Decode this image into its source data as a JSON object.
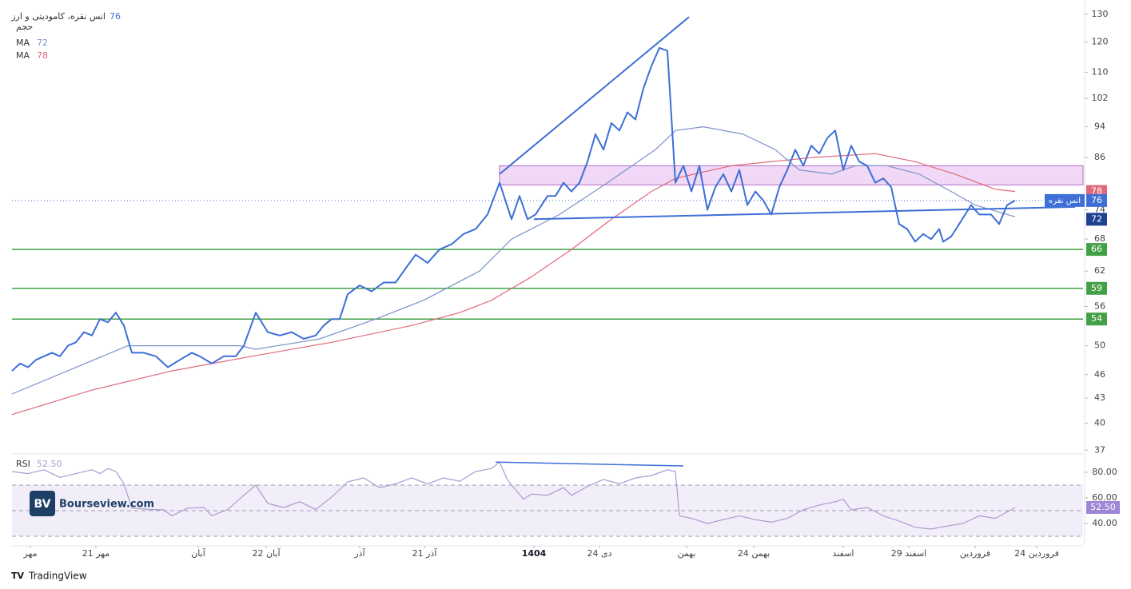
{
  "chart_data": {
    "type": "line",
    "log_scale": true,
    "volume_label": "حجم",
    "xlim": [
      0,
      134
    ],
    "ylim": [
      36.6,
      133
    ],
    "yticks": [
      130,
      120,
      110,
      102,
      94,
      86,
      74,
      68,
      62,
      56,
      50,
      46,
      43,
      40,
      37
    ],
    "xticks": [
      {
        "value": 2.3,
        "label": "مهر"
      },
      {
        "value": 10.5,
        "label": "21 مهر"
      },
      {
        "value": 23.3,
        "label": "آبان"
      },
      {
        "value": 31.8,
        "label": "22 آبان"
      },
      {
        "value": 43.5,
        "label": "آذر"
      },
      {
        "value": 51.6,
        "label": "21 آذر"
      },
      {
        "value": 65.3,
        "label": "1404"
      },
      {
        "value": 73.5,
        "label": "24 دی"
      },
      {
        "value": 84.4,
        "label": "بهمن"
      },
      {
        "value": 92.8,
        "label": "24 بهمن"
      },
      {
        "value": 104,
        "label": "اسفند"
      },
      {
        "value": 112.2,
        "label": "29 اسفند"
      },
      {
        "value": 120.5,
        "label": "فروردین"
      },
      {
        "value": 128.2,
        "label": "24 فروردین"
      }
    ],
    "series": [
      {
        "name": "انس نقره، کامودیتی و ارز",
        "tag": "انس نقره",
        "color": "#3d6fd6",
        "last_value": 76,
        "width": 2,
        "x": [
          0,
          1,
          2,
          3,
          4,
          5,
          6,
          7,
          8,
          9,
          10,
          11,
          12,
          13,
          14,
          15,
          16.5,
          18,
          19.5,
          21,
          22.5,
          23.5,
          25,
          26.5,
          28,
          29,
          30.5,
          32,
          33.5,
          35,
          36.5,
          38,
          39,
          40,
          41,
          42,
          43.5,
          45,
          46.5,
          48,
          49.5,
          50.5,
          52,
          53.5,
          55,
          56.5,
          58,
          59.5,
          61,
          62.5,
          63.5,
          64.5,
          65.5,
          67,
          68,
          69,
          70,
          71,
          72,
          73,
          74,
          75,
          76,
          77,
          78,
          79,
          80,
          81,
          82,
          83,
          84,
          85,
          86,
          87,
          88,
          89,
          90,
          91,
          92,
          93,
          94,
          95,
          96,
          97,
          98,
          99,
          100,
          101,
          102,
          103,
          104,
          105,
          106,
          107,
          108,
          109,
          110,
          111,
          112,
          113,
          114,
          115,
          116,
          116.5,
          117.5,
          118.5,
          120,
          121,
          122.5,
          123.5,
          124.5,
          125.5
        ],
        "values": [
          46.5,
          47.5,
          47,
          48,
          48.5,
          49,
          48.5,
          50,
          50.5,
          52,
          51.5,
          54,
          53.5,
          55,
          53,
          49,
          49,
          48.5,
          47,
          48,
          49,
          48.5,
          47.5,
          48.5,
          48.5,
          50,
          55,
          52,
          51.5,
          52,
          51,
          51.5,
          53,
          54,
          54,
          58,
          59.5,
          58.5,
          60,
          60,
          63,
          65,
          63.5,
          66,
          67,
          69,
          70,
          73,
          80,
          72,
          77,
          72,
          73,
          77,
          77,
          80,
          78,
          80,
          85,
          92,
          88,
          95,
          93,
          98,
          96,
          105,
          112,
          118,
          117,
          80,
          84,
          78,
          84,
          74,
          79,
          82,
          78,
          83,
          75,
          78,
          76,
          73,
          79,
          83,
          88,
          84,
          89,
          87,
          91,
          93,
          83,
          89,
          85,
          84,
          80,
          81,
          79,
          71,
          70,
          67.5,
          69,
          68,
          70,
          67.5,
          68.5,
          71,
          75,
          73,
          73,
          71,
          75,
          76
        ]
      },
      {
        "name": "MA",
        "color": "#7b93c9",
        "last_value": 72,
        "width": 1.2,
        "x": [
          0,
          14.5,
          28.5,
          30.5,
          38.5,
          45.5,
          51.5,
          58.5,
          62.5,
          68.5,
          74.5,
          80.5,
          83,
          86.5,
          91.5,
          95.5,
          98.5,
          102.5,
          105.5,
          109.5,
          113.5,
          117.5,
          120.5,
          125.5
        ],
        "values": [
          43.5,
          50,
          50,
          49.5,
          51,
          54,
          57,
          62,
          68,
          73,
          80,
          88,
          93,
          94,
          92,
          88,
          83,
          82,
          84,
          84,
          82,
          78,
          75,
          72.5
        ]
      },
      {
        "name": "MA",
        "color": "#e0687a",
        "last_value": 78,
        "width": 1.2,
        "x": [
          0,
          10,
          20,
          30,
          40,
          50,
          56,
          60,
          65,
          70,
          75,
          80,
          83,
          90,
          100,
          108,
          113,
          118,
          123,
          125.5
        ],
        "values": [
          41,
          44,
          46.5,
          48.5,
          50.5,
          53,
          55,
          57,
          61,
          66,
          72,
          78,
          81,
          84,
          86,
          87,
          85,
          82,
          78.5,
          78
        ]
      }
    ],
    "levels": [
      {
        "value": 66,
        "color": "#43a047"
      },
      {
        "value": 59,
        "color": "#43a047"
      },
      {
        "value": 54,
        "color": "#43a047"
      }
    ],
    "zone": {
      "x": [
        61,
        134
      ],
      "values": [
        79.5,
        84
      ],
      "color": "#e4b8ee"
    },
    "trendlines": [
      {
        "x": [
          61,
          84.7
        ],
        "values": [
          82,
          129
        ],
        "color": "#3d6fd6"
      },
      {
        "x": [
          65.3,
          133
        ],
        "values": [
          72,
          74.6
        ],
        "color": "#3d6fd6"
      }
    ],
    "rsi": {
      "name": "RSI",
      "last_value": 52.5,
      "last_value_label": "52.50",
      "color": "#a99bd0",
      "ylim": [
        22.5,
        93.1
      ],
      "yticks": [
        {
          "value": 80,
          "label": "80.00"
        },
        {
          "value": 60,
          "label": "60.00"
        },
        {
          "value": 40,
          "label": "40.00"
        }
      ],
      "band": [
        30,
        70
      ],
      "mid": 50,
      "x": [
        0,
        2,
        4,
        6,
        8,
        10,
        11,
        12,
        13,
        14,
        15,
        17,
        19,
        20,
        22,
        24,
        25,
        27,
        29,
        30.5,
        32,
        34,
        36,
        38,
        40,
        42,
        44,
        46,
        48,
        50,
        52,
        54,
        56,
        58,
        60,
        61,
        62,
        64,
        65,
        67,
        69,
        70,
        72,
        74,
        76,
        78,
        80,
        82,
        83,
        83.5,
        85,
        87,
        89,
        91,
        93,
        95,
        97,
        99,
        101,
        103,
        104,
        105,
        107,
        109,
        111,
        113,
        115,
        117,
        119,
        121,
        123,
        125,
        125.5
      ],
      "values": [
        80.6,
        79,
        82,
        76,
        79,
        82,
        79,
        83,
        80.6,
        71,
        52,
        51,
        50.6,
        46,
        52,
        52.5,
        46,
        51,
        62,
        70,
        55.6,
        52.5,
        57,
        51,
        60.6,
        72.5,
        75.6,
        68,
        71,
        75.6,
        71,
        75.6,
        73,
        80.6,
        83,
        88,
        74,
        59,
        63,
        62,
        68,
        62,
        69,
        74.4,
        71,
        75.6,
        77.5,
        82,
        80.6,
        46,
        44,
        40,
        43,
        46,
        43,
        41,
        44,
        50.6,
        54.4,
        57,
        59,
        50.6,
        52.5,
        46,
        41.9,
        37,
        35.6,
        38,
        40,
        46,
        44,
        50.6,
        52.5
      ],
      "trendline": {
        "x": [
          60.5,
          84
        ],
        "values": [
          88,
          85
        ],
        "color": "#3d6fd6"
      }
    },
    "watermark": {
      "logo": "BV",
      "text": "Bourseview.com"
    },
    "footer": "TradingView"
  }
}
